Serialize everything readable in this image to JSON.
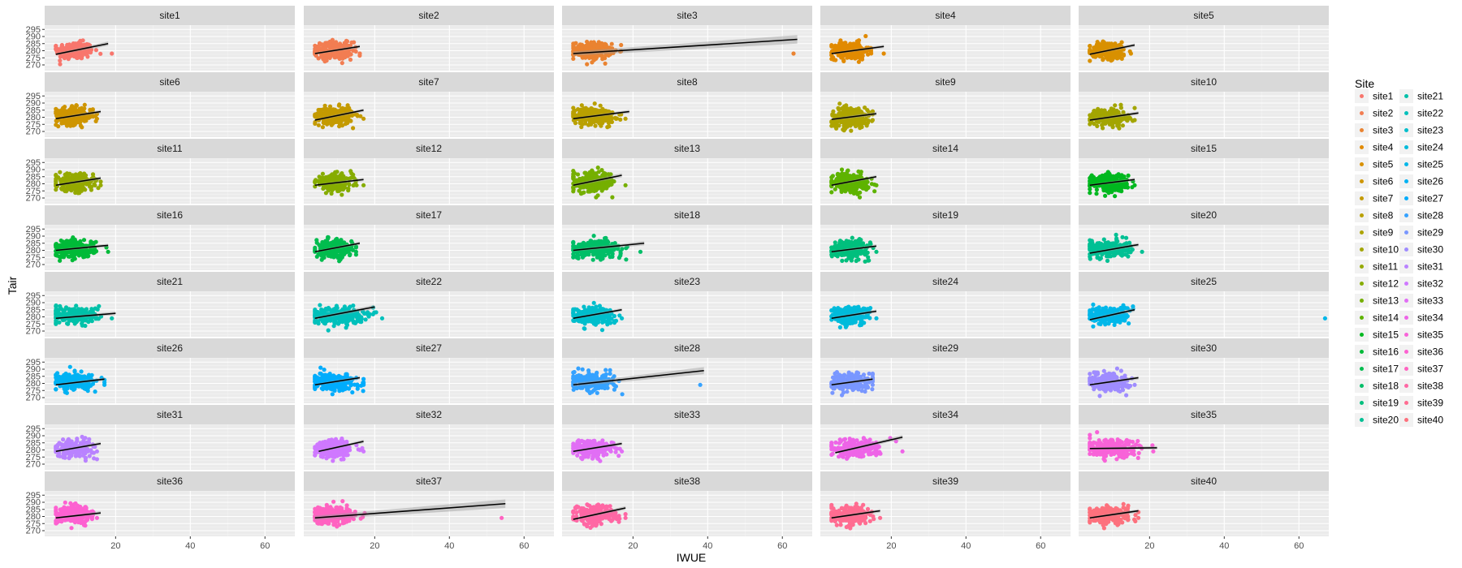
{
  "chart_data": {
    "type": "scatter",
    "facet_layout": {
      "ncol": 5,
      "nrow": 8
    },
    "xlabel": "IWUE",
    "ylabel": "Tair",
    "xlim": [
      1,
      68
    ],
    "ylim": [
      266,
      298
    ],
    "x_ticks": [
      20,
      40,
      60
    ],
    "y_ticks": [
      270,
      275,
      280,
      285,
      290,
      295
    ],
    "grid": true,
    "legend": {
      "title": "Site",
      "placement": "right",
      "ncol": 2
    },
    "panels": [
      {
        "site": "site1",
        "color": "#F8766D",
        "x_mean": 9.0,
        "x_sd": 2.5,
        "x_max": 20,
        "y_mean": 280,
        "y_sd": 3.0,
        "fit_x": [
          4,
          18
        ],
        "fit_y": [
          277.5,
          285.0
        ],
        "band": 1.5
      },
      {
        "site": "site2",
        "color": "#F27D52",
        "x_mean": 9.0,
        "x_sd": 2.5,
        "x_max": 17,
        "y_mean": 280,
        "y_sd": 3.0,
        "fit_x": [
          4,
          16
        ],
        "fit_y": [
          278.0,
          283.0
        ],
        "band": 1.2
      },
      {
        "site": "site3",
        "color": "#EA8331",
        "x_mean": 9.0,
        "x_sd": 2.6,
        "x_max": 64,
        "y_mean": 280,
        "y_sd": 3.0,
        "fit_x": [
          4,
          64
        ],
        "fit_y": [
          278.0,
          288.0
        ],
        "band": 3.0
      },
      {
        "site": "site4",
        "color": "#E18A00",
        "x_mean": 9.0,
        "x_sd": 2.5,
        "x_max": 19,
        "y_mean": 280,
        "y_sd": 3.0,
        "fit_x": [
          4,
          18
        ],
        "fit_y": [
          278.0,
          283.0
        ],
        "band": 1.2
      },
      {
        "site": "site5",
        "color": "#D89000",
        "x_mean": 9.0,
        "x_sd": 2.5,
        "x_max": 16,
        "y_mean": 280,
        "y_sd": 3.0,
        "fit_x": [
          4,
          16
        ],
        "fit_y": [
          277.5,
          284.0
        ],
        "band": 1.2
      },
      {
        "site": "site6",
        "color": "#CE9500",
        "x_mean": 9.0,
        "x_sd": 2.5,
        "x_max": 16,
        "y_mean": 281,
        "y_sd": 3.0,
        "fit_x": [
          4,
          16
        ],
        "fit_y": [
          279.0,
          284.0
        ],
        "band": 1.2
      },
      {
        "site": "site7",
        "color": "#C49A00",
        "x_mean": 9.0,
        "x_sd": 2.5,
        "x_max": 18,
        "y_mean": 281,
        "y_sd": 3.0,
        "fit_x": [
          4,
          17
        ],
        "fit_y": [
          278.0,
          285.0
        ],
        "band": 1.2
      },
      {
        "site": "site8",
        "color": "#B9A000",
        "x_mean": 9.5,
        "x_sd": 2.8,
        "x_max": 19,
        "y_mean": 281,
        "y_sd": 3.0,
        "fit_x": [
          4,
          19
        ],
        "fit_y": [
          279.0,
          284.0
        ],
        "band": 1.2
      },
      {
        "site": "site9",
        "color": "#ADA400",
        "x_mean": 9.0,
        "x_sd": 2.5,
        "x_max": 16,
        "y_mean": 280,
        "y_sd": 3.5,
        "fit_x": [
          4,
          16
        ],
        "fit_y": [
          278.5,
          282.5
        ],
        "band": 1.3
      },
      {
        "site": "site10",
        "color": "#A3A500",
        "x_mean": 9.0,
        "x_sd": 2.5,
        "x_max": 17,
        "y_mean": 280,
        "y_sd": 3.0,
        "fit_x": [
          4,
          17
        ],
        "fit_y": [
          278.0,
          283.0
        ],
        "band": 1.2
      },
      {
        "site": "site11",
        "color": "#95A900",
        "x_mean": 9.0,
        "x_sd": 2.5,
        "x_max": 17,
        "y_mean": 281,
        "y_sd": 3.0,
        "fit_x": [
          4,
          16
        ],
        "fit_y": [
          279.0,
          284.0
        ],
        "band": 1.2
      },
      {
        "site": "site12",
        "color": "#86AC00",
        "x_mean": 9.0,
        "x_sd": 2.5,
        "x_max": 18,
        "y_mean": 281,
        "y_sd": 2.8,
        "fit_x": [
          4,
          17
        ],
        "fit_y": [
          279.0,
          283.0
        ],
        "band": 1.2
      },
      {
        "site": "site13",
        "color": "#75AF00",
        "x_mean": 9.5,
        "x_sd": 3.0,
        "x_max": 19,
        "y_mean": 281,
        "y_sd": 3.5,
        "fit_x": [
          4,
          17
        ],
        "fit_y": [
          279.0,
          286.0
        ],
        "band": 1.5
      },
      {
        "site": "site14",
        "color": "#5EB300",
        "x_mean": 9.0,
        "x_sd": 2.5,
        "x_max": 17,
        "y_mean": 281,
        "y_sd": 3.0,
        "fit_x": [
          4,
          16
        ],
        "fit_y": [
          279.0,
          285.0
        ],
        "band": 1.2
      },
      {
        "site": "site15",
        "color": "#00B81F",
        "x_mean": 9.0,
        "x_sd": 2.5,
        "x_max": 17,
        "y_mean": 281,
        "y_sd": 3.0,
        "fit_x": [
          4,
          16
        ],
        "fit_y": [
          279.0,
          283.0
        ],
        "band": 1.2
      },
      {
        "site": "site16",
        "color": "#00BA38",
        "x_mean": 9.0,
        "x_sd": 2.8,
        "x_max": 19,
        "y_mean": 281,
        "y_sd": 3.0,
        "fit_x": [
          4,
          18
        ],
        "fit_y": [
          280.0,
          283.5
        ],
        "band": 1.2
      },
      {
        "site": "site17",
        "color": "#00BC4E",
        "x_mean": 9.0,
        "x_sd": 2.5,
        "x_max": 16,
        "y_mean": 281,
        "y_sd": 3.0,
        "fit_x": [
          4,
          16
        ],
        "fit_y": [
          279.0,
          285.0
        ],
        "band": 1.2
      },
      {
        "site": "site18",
        "color": "#00BE67",
        "x_mean": 10.0,
        "x_sd": 3.5,
        "x_max": 23,
        "y_mean": 281,
        "y_sd": 3.0,
        "fit_x": [
          4,
          23
        ],
        "fit_y": [
          280.0,
          285.0
        ],
        "band": 1.5
      },
      {
        "site": "site19",
        "color": "#00BF7D",
        "x_mean": 9.0,
        "x_sd": 2.5,
        "x_max": 17,
        "y_mean": 281,
        "y_sd": 3.0,
        "fit_x": [
          4,
          16
        ],
        "fit_y": [
          279.0,
          283.0
        ],
        "band": 1.2
      },
      {
        "site": "site20",
        "color": "#00C094",
        "x_mean": 9.0,
        "x_sd": 2.8,
        "x_max": 19,
        "y_mean": 281,
        "y_sd": 3.0,
        "fit_x": [
          4,
          17
        ],
        "fit_y": [
          278.0,
          284.0
        ],
        "band": 1.3
      },
      {
        "site": "site21",
        "color": "#00C1A9",
        "x_mean": 9.5,
        "x_sd": 3.0,
        "x_max": 20,
        "y_mean": 281,
        "y_sd": 3.0,
        "fit_x": [
          4,
          20
        ],
        "fit_y": [
          279.0,
          282.5
        ],
        "band": 1.2
      },
      {
        "site": "site22",
        "color": "#00C0BB",
        "x_mean": 10.0,
        "x_sd": 3.5,
        "x_max": 23,
        "y_mean": 281,
        "y_sd": 3.0,
        "fit_x": [
          4,
          20
        ],
        "fit_y": [
          279.0,
          287.0
        ],
        "band": 1.5
      },
      {
        "site": "site23",
        "color": "#00BECC",
        "x_mean": 9.0,
        "x_sd": 2.8,
        "x_max": 18,
        "y_mean": 281,
        "y_sd": 3.0,
        "fit_x": [
          4,
          17
        ],
        "fit_y": [
          279.0,
          285.0
        ],
        "band": 1.2
      },
      {
        "site": "site24",
        "color": "#00BBDB",
        "x_mean": 9.0,
        "x_sd": 2.5,
        "x_max": 17,
        "y_mean": 281,
        "y_sd": 3.0,
        "fit_x": [
          4,
          16
        ],
        "fit_y": [
          279.0,
          284.0
        ],
        "band": 1.2
      },
      {
        "site": "site25",
        "color": "#00B7E9",
        "x_mean": 9.0,
        "x_sd": 2.8,
        "x_max": 68,
        "y_mean": 281,
        "y_sd": 3.0,
        "fit_x": [
          4,
          16
        ],
        "fit_y": [
          278.0,
          285.0
        ],
        "band": 1.3
      },
      {
        "site": "site26",
        "color": "#00B2F3",
        "x_mean": 9.0,
        "x_sd": 2.8,
        "x_max": 18,
        "y_mean": 281,
        "y_sd": 2.8,
        "fit_x": [
          4,
          17
        ],
        "fit_y": [
          279.0,
          283.0
        ],
        "band": 1.2
      },
      {
        "site": "site27",
        "color": "#00ACFC",
        "x_mean": 9.0,
        "x_sd": 3.0,
        "x_max": 18,
        "y_mean": 281,
        "y_sd": 3.0,
        "fit_x": [
          4,
          16
        ],
        "fit_y": [
          279.0,
          284.0
        ],
        "band": 1.2
      },
      {
        "site": "site28",
        "color": "#35A2FF",
        "x_mean": 9.0,
        "x_sd": 3.0,
        "x_max": 39,
        "y_mean": 281,
        "y_sd": 3.0,
        "fit_x": [
          4,
          39
        ],
        "fit_y": [
          279.0,
          289.0
        ],
        "band": 2.5
      },
      {
        "site": "site29",
        "color": "#7997FF",
        "x_mean": 9.0,
        "x_sd": 2.5,
        "x_max": 16,
        "y_mean": 281,
        "y_sd": 3.0,
        "fit_x": [
          4,
          15
        ],
        "fit_y": [
          279.0,
          283.0
        ],
        "band": 1.2
      },
      {
        "site": "site30",
        "color": "#9F8CFF",
        "x_mean": 9.0,
        "x_sd": 2.5,
        "x_max": 17,
        "y_mean": 281,
        "y_sd": 3.0,
        "fit_x": [
          4,
          17
        ],
        "fit_y": [
          279.0,
          284.0
        ],
        "band": 1.2
      },
      {
        "site": "site31",
        "color": "#B983FF",
        "x_mean": 9.0,
        "x_sd": 2.5,
        "x_max": 16,
        "y_mean": 281,
        "y_sd": 3.0,
        "fit_x": [
          4,
          16
        ],
        "fit_y": [
          279.0,
          284.5
        ],
        "band": 1.2
      },
      {
        "site": "site32",
        "color": "#CF78FF",
        "x_mean": 9.0,
        "x_sd": 2.5,
        "x_max": 18,
        "y_mean": 281,
        "y_sd": 3.0,
        "fit_x": [
          5,
          17
        ],
        "fit_y": [
          279.0,
          286.0
        ],
        "band": 1.2
      },
      {
        "site": "site33",
        "color": "#E16EF5",
        "x_mean": 9.0,
        "x_sd": 2.8,
        "x_max": 18,
        "y_mean": 281,
        "y_sd": 3.0,
        "fit_x": [
          4,
          17
        ],
        "fit_y": [
          279.0,
          284.5
        ],
        "band": 1.2
      },
      {
        "site": "site34",
        "color": "#EE64E7",
        "x_mean": 10.0,
        "x_sd": 3.5,
        "x_max": 24,
        "y_mean": 281,
        "y_sd": 3.0,
        "fit_x": [
          5,
          23
        ],
        "fit_y": [
          278.0,
          289.0
        ],
        "band": 1.5
      },
      {
        "site": "site35",
        "color": "#F863D8",
        "x_mean": 10.0,
        "x_sd": 3.5,
        "x_max": 22,
        "y_mean": 281,
        "y_sd": 3.0,
        "fit_x": [
          4,
          22
        ],
        "fit_y": [
          281.0,
          281.5
        ],
        "band": 1.2
      },
      {
        "site": "site36",
        "color": "#FD61D1",
        "x_mean": 9.0,
        "x_sd": 2.5,
        "x_max": 16,
        "y_mean": 281,
        "y_sd": 3.0,
        "fit_x": [
          4,
          16
        ],
        "fit_y": [
          279.0,
          282.5
        ],
        "band": 1.2
      },
      {
        "site": "site37",
        "color": "#FF63C1",
        "x_mean": 9.0,
        "x_sd": 3.0,
        "x_max": 55,
        "y_mean": 281,
        "y_sd": 3.0,
        "fit_x": [
          4,
          55
        ],
        "fit_y": [
          279.0,
          289.0
        ],
        "band": 3.0
      },
      {
        "site": "site38",
        "color": "#FF67A4",
        "x_mean": 9.5,
        "x_sd": 3.0,
        "x_max": 19,
        "y_mean": 281,
        "y_sd": 3.2,
        "fit_x": [
          4,
          18
        ],
        "fit_y": [
          278.0,
          286.0
        ],
        "band": 1.3
      },
      {
        "site": "site39",
        "color": "#FF6C91",
        "x_mean": 9.0,
        "x_sd": 2.5,
        "x_max": 18,
        "y_mean": 281,
        "y_sd": 3.0,
        "fit_x": [
          4,
          17
        ],
        "fit_y": [
          279.0,
          284.0
        ],
        "band": 1.2
      },
      {
        "site": "site40",
        "color": "#FD717D",
        "x_mean": 9.0,
        "x_sd": 2.8,
        "x_max": 18,
        "y_mean": 281,
        "y_sd": 3.0,
        "fit_x": [
          4,
          17
        ],
        "fit_y": [
          279.0,
          284.0
        ],
        "band": 1.2
      }
    ]
  }
}
